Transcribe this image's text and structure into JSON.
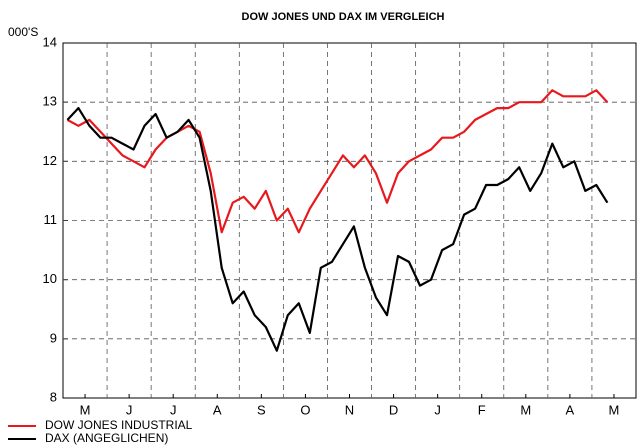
{
  "chart_data": {
    "type": "line",
    "title": "DOW JONES UND DAX IM VERGLEICH",
    "y_label": "000'S",
    "xlim": [
      0,
      13
    ],
    "xticks": [
      {
        "value": 0.5,
        "label": "M"
      },
      {
        "value": 1.5,
        "label": "J"
      },
      {
        "value": 2.5,
        "label": "J"
      },
      {
        "value": 3.5,
        "label": "A"
      },
      {
        "value": 4.5,
        "label": "S"
      },
      {
        "value": 5.5,
        "label": "O"
      },
      {
        "value": 6.5,
        "label": "N"
      },
      {
        "value": 7.5,
        "label": "D"
      },
      {
        "value": 8.5,
        "label": "J"
      },
      {
        "value": 9.5,
        "label": "F"
      },
      {
        "value": 10.5,
        "label": "M"
      },
      {
        "value": 11.5,
        "label": "A"
      },
      {
        "value": 12.5,
        "label": "M"
      }
    ],
    "ylim": [
      8,
      14
    ],
    "yticks": [
      8,
      9,
      10,
      11,
      12,
      13,
      14
    ],
    "grid": true,
    "x": [
      0.1,
      0.35,
      0.6,
      0.85,
      1.1,
      1.35,
      1.6,
      1.85,
      2.1,
      2.35,
      2.6,
      2.85,
      3.1,
      3.35,
      3.6,
      3.85,
      4.1,
      4.35,
      4.6,
      4.85,
      5.1,
      5.35,
      5.6,
      5.85,
      6.1,
      6.35,
      6.6,
      6.85,
      7.1,
      7.35,
      7.6,
      7.85,
      8.1,
      8.35,
      8.6,
      8.85,
      9.1,
      9.35,
      9.6,
      9.85,
      10.1,
      10.35,
      10.6,
      10.85,
      11.1,
      11.35,
      11.6,
      11.85,
      12.1,
      12.35
    ],
    "series": [
      {
        "name": "DOW JONES INDUSTRIAL",
        "color": "#e8191c",
        "values": [
          12.7,
          12.6,
          12.7,
          12.5,
          12.3,
          12.1,
          12.0,
          11.9,
          12.2,
          12.4,
          12.5,
          12.6,
          12.5,
          11.8,
          10.8,
          11.3,
          11.4,
          11.2,
          11.5,
          11.0,
          11.2,
          10.8,
          11.2,
          11.5,
          11.8,
          12.1,
          11.9,
          12.1,
          11.8,
          11.3,
          11.8,
          12.0,
          12.1,
          12.2,
          12.4,
          12.4,
          12.5,
          12.7,
          12.8,
          12.9,
          12.9,
          13.0,
          13.0,
          13.0,
          13.2,
          13.1,
          13.1,
          13.1,
          13.2,
          13.0
        ]
      },
      {
        "name": "DAX (ANGEGLICHEN)",
        "color": "#000000",
        "values": [
          12.7,
          12.9,
          12.6,
          12.4,
          12.4,
          12.3,
          12.2,
          12.6,
          12.8,
          12.4,
          12.5,
          12.7,
          12.4,
          11.5,
          10.2,
          9.6,
          9.8,
          9.4,
          9.2,
          8.8,
          9.4,
          9.6,
          9.1,
          10.2,
          10.3,
          10.6,
          10.9,
          10.2,
          9.7,
          9.4,
          10.4,
          10.3,
          9.9,
          10.0,
          10.5,
          10.6,
          11.1,
          11.2,
          11.6,
          11.6,
          11.7,
          11.9,
          11.5,
          11.8,
          12.3,
          11.9,
          12.0,
          11.5,
          11.6,
          11.3
        ]
      }
    ]
  }
}
